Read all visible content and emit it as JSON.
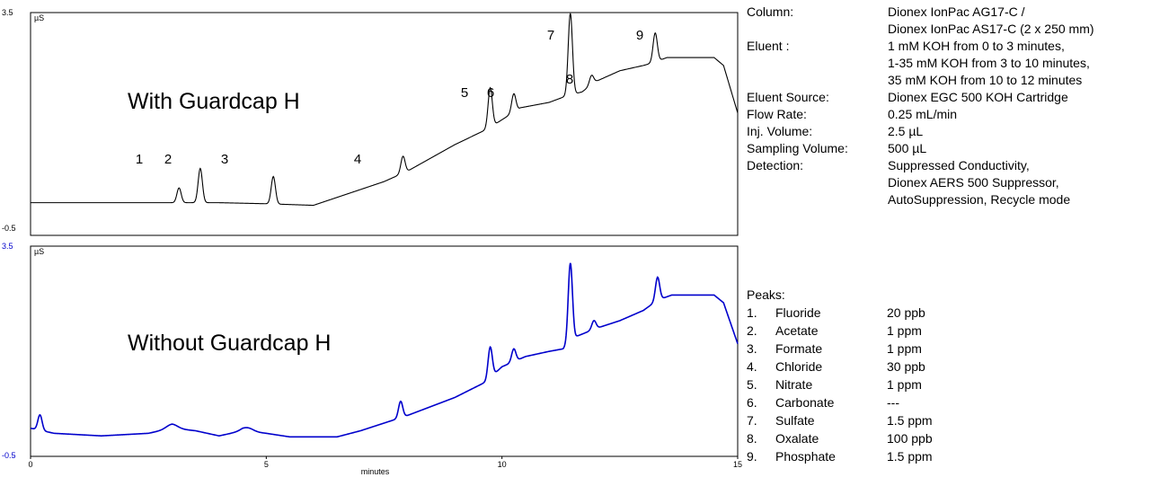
{
  "chart_data": [
    {
      "type": "line",
      "panel_label": "With Guardcap H",
      "y_unit": "µS",
      "ylim": [
        -0.5,
        3.5
      ],
      "y_tick_labels": [
        "3.5",
        "-0.5"
      ],
      "xlim": [
        0,
        15
      ],
      "color": "#000000",
      "baseline": [
        [
          0,
          0.0
        ],
        [
          2.5,
          0.0
        ],
        [
          3.3,
          0.0
        ],
        [
          4.0,
          0.0
        ],
        [
          5.0,
          -0.02
        ],
        [
          6.0,
          -0.05
        ],
        [
          7.5,
          0.4
        ],
        [
          8.0,
          0.6
        ],
        [
          9.0,
          1.1
        ],
        [
          9.7,
          1.4
        ],
        [
          10.4,
          1.8
        ],
        [
          11.0,
          1.9
        ],
        [
          11.3,
          2.0
        ],
        [
          11.7,
          2.1
        ],
        [
          12.0,
          2.3
        ],
        [
          12.5,
          2.5
        ],
        [
          13.0,
          2.6
        ],
        [
          13.2,
          2.65
        ],
        [
          13.5,
          2.75
        ],
        [
          14.5,
          2.75
        ],
        [
          14.7,
          2.6
        ],
        [
          15,
          1.7
        ]
      ],
      "peaks": [
        {
          "label": "1",
          "t": 3.15,
          "h": 0.28
        },
        {
          "label": "2",
          "t": 3.6,
          "h": 0.65
        },
        {
          "label": "3",
          "t": 5.15,
          "h": 0.52
        },
        {
          "label": "4",
          "t": 7.9,
          "h": 0.32
        },
        {
          "label": "5",
          "t": 9.75,
          "h": 0.75
        },
        {
          "label": "6",
          "t": 10.25,
          "h": 0.35
        },
        {
          "label": "7",
          "t": 11.45,
          "h": 1.55
        },
        {
          "label": "8",
          "t": 11.9,
          "h": 0.18
        },
        {
          "label": "9",
          "t": 13.25,
          "h": 0.55
        }
      ]
    },
    {
      "type": "line",
      "panel_label": "Without Guardcap H",
      "y_unit": "µS",
      "ylim": [
        -0.5,
        3.5
      ],
      "y_tick_labels": [
        "3.5",
        "-0.5"
      ],
      "xlim": [
        0,
        15
      ],
      "x_ticks": [
        0,
        5,
        10,
        15
      ],
      "xlabel": "minutes",
      "color": "#0000cc",
      "baseline": [
        [
          0,
          0.05
        ],
        [
          0.5,
          -0.05
        ],
        [
          1.5,
          -0.1
        ],
        [
          2.5,
          -0.05
        ],
        [
          3.0,
          0.05
        ],
        [
          3.5,
          0.0
        ],
        [
          4.0,
          -0.1
        ],
        [
          4.5,
          0.0
        ],
        [
          5.0,
          -0.05
        ],
        [
          5.5,
          -0.12
        ],
        [
          6.5,
          -0.12
        ],
        [
          7.0,
          0.0
        ],
        [
          8.0,
          0.3
        ],
        [
          9.0,
          0.65
        ],
        [
          9.65,
          0.95
        ],
        [
          10.0,
          1.25
        ],
        [
          10.5,
          1.45
        ],
        [
          11.0,
          1.55
        ],
        [
          11.3,
          1.6
        ],
        [
          11.6,
          1.85
        ],
        [
          12.0,
          2.0
        ],
        [
          12.5,
          2.15
        ],
        [
          13.0,
          2.35
        ],
        [
          13.3,
          2.55
        ],
        [
          13.6,
          2.65
        ],
        [
          14.5,
          2.65
        ],
        [
          14.7,
          2.5
        ],
        [
          15,
          1.7
        ]
      ],
      "peaks": [
        {
          "label": "1",
          "t": 0.2,
          "h": 0.3
        },
        {
          "label": "2",
          "t": 3.0,
          "h": 0.08
        },
        {
          "label": "3",
          "t": 4.6,
          "h": 0.07
        },
        {
          "label": "4",
          "t": 7.85,
          "h": 0.32
        },
        {
          "label": "5",
          "t": 9.75,
          "h": 0.6
        },
        {
          "label": "6",
          "t": 10.25,
          "h": 0.25
        },
        {
          "label": "7",
          "t": 11.45,
          "h": 1.55
        },
        {
          "label": "8",
          "t": 11.95,
          "h": 0.17
        },
        {
          "label": "9",
          "t": 13.3,
          "h": 0.45
        }
      ]
    }
  ],
  "conditions": [
    {
      "label": "Column:",
      "value": [
        "Dionex IonPac AG17-C /",
        "Dionex IonPac AS17-C (2 x 250 mm)"
      ]
    },
    {
      "label": "Eluent :",
      "value": [
        "1 mM KOH from 0 to 3 minutes,",
        "1-35 mM KOH from 3 to 10 minutes,",
        "35 mM KOH from 10 to 12 minutes"
      ]
    },
    {
      "label": "Eluent Source:",
      "value": [
        "Dionex EGC 500 KOH Cartridge"
      ]
    },
    {
      "label": "Flow Rate:",
      "value": [
        "0.25 mL/min"
      ]
    },
    {
      "label": "Inj. Volume:",
      "value": [
        "2.5 µL"
      ]
    },
    {
      "label": "Sampling Volume:",
      "value": [
        "500 µL"
      ]
    },
    {
      "label": "Detection:",
      "value": [
        "Suppressed Conductivity,",
        "Dionex AERS 500 Suppressor,",
        "AutoSuppression, Recycle mode"
      ]
    }
  ],
  "peaks_table": {
    "title": "Peaks:",
    "items": [
      {
        "num": "1.",
        "name": "Fluoride",
        "amount": "20 ppb"
      },
      {
        "num": "2.",
        "name": "Acetate",
        "amount": "1 ppm"
      },
      {
        "num": "3.",
        "name": "Formate",
        "amount": "1 ppm"
      },
      {
        "num": "4.",
        "name": "Chloride",
        "amount": "30 ppb"
      },
      {
        "num": "5.",
        "name": "Nitrate",
        "amount": "1 ppm"
      },
      {
        "num": "6.",
        "name": "Carbonate",
        "amount": "---"
      },
      {
        "num": "7.",
        "name": "Sulfate",
        "amount": "1.5 ppm"
      },
      {
        "num": "8.",
        "name": "Oxalate",
        "amount": "100 ppb"
      },
      {
        "num": "9.",
        "name": "Phosphate",
        "amount": "1.5 ppm"
      }
    ]
  }
}
